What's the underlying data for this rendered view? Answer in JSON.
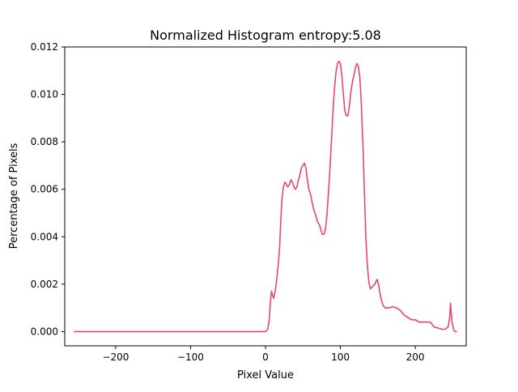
{
  "chart_data": {
    "type": "line",
    "title": "Normalized Histogram entropy:5.08",
    "xlabel": "Pixel Value",
    "ylabel": "Percentage of Pixels",
    "xlim": [
      -268,
      268
    ],
    "ylim": [
      -0.0006,
      0.012
    ],
    "xticks": [
      -200,
      -100,
      0,
      100,
      200
    ],
    "xtick_labels": [
      "−200",
      "−100",
      "0",
      "100",
      "200"
    ],
    "yticks": [
      0,
      0.002,
      0.004,
      0.006,
      0.008,
      0.01,
      0.012
    ],
    "ytick_labels": [
      "0.000",
      "0.002",
      "0.004",
      "0.006",
      "0.008",
      "0.010",
      "0.012"
    ],
    "grid": false,
    "legend": "none",
    "series": [
      {
        "color": "#e8466f",
        "points": [
          [
            -255,
            0.0
          ],
          [
            -200,
            0.0
          ],
          [
            -100,
            0.0
          ],
          [
            -20,
            0.0
          ],
          [
            0,
            0.0
          ],
          [
            3,
            0.0001
          ],
          [
            5,
            0.0005
          ],
          [
            7,
            0.0014
          ],
          [
            8,
            0.0017
          ],
          [
            10,
            0.0015
          ],
          [
            11,
            0.0014
          ],
          [
            13,
            0.0017
          ],
          [
            15,
            0.0022
          ],
          [
            17,
            0.0028
          ],
          [
            19,
            0.0036
          ],
          [
            20,
            0.0044
          ],
          [
            22,
            0.0056
          ],
          [
            24,
            0.0061
          ],
          [
            26,
            0.0063
          ],
          [
            28,
            0.0062
          ],
          [
            30,
            0.0061
          ],
          [
            32,
            0.0062
          ],
          [
            34,
            0.0064
          ],
          [
            36,
            0.0063
          ],
          [
            38,
            0.0061
          ],
          [
            40,
            0.006
          ],
          [
            42,
            0.0061
          ],
          [
            44,
            0.0064
          ],
          [
            46,
            0.0066
          ],
          [
            48,
            0.0069
          ],
          [
            50,
            0.007
          ],
          [
            52,
            0.0071
          ],
          [
            54,
            0.0069
          ],
          [
            56,
            0.0064
          ],
          [
            58,
            0.006
          ],
          [
            60,
            0.0058
          ],
          [
            62,
            0.0055
          ],
          [
            64,
            0.0052
          ],
          [
            66,
            0.005
          ],
          [
            68,
            0.0048
          ],
          [
            70,
            0.0046
          ],
          [
            72,
            0.0045
          ],
          [
            74,
            0.0043
          ],
          [
            76,
            0.0041
          ],
          [
            78,
            0.0041
          ],
          [
            80,
            0.0043
          ],
          [
            82,
            0.0049
          ],
          [
            84,
            0.0058
          ],
          [
            86,
            0.0068
          ],
          [
            88,
            0.008
          ],
          [
            90,
            0.0092
          ],
          [
            92,
            0.0102
          ],
          [
            94,
            0.0109
          ],
          [
            96,
            0.0113
          ],
          [
            98,
            0.0114
          ],
          [
            100,
            0.0113
          ],
          [
            102,
            0.0108
          ],
          [
            104,
            0.01
          ],
          [
            106,
            0.0093
          ],
          [
            108,
            0.0091
          ],
          [
            110,
            0.0091
          ],
          [
            112,
            0.0095
          ],
          [
            114,
            0.0101
          ],
          [
            116,
            0.0105
          ],
          [
            118,
            0.0108
          ],
          [
            120,
            0.0111
          ],
          [
            122,
            0.0113
          ],
          [
            124,
            0.0112
          ],
          [
            126,
            0.0107
          ],
          [
            128,
            0.0096
          ],
          [
            130,
            0.008
          ],
          [
            132,
            0.006
          ],
          [
            134,
            0.004
          ],
          [
            136,
            0.0028
          ],
          [
            138,
            0.0021
          ],
          [
            140,
            0.0018
          ],
          [
            143,
            0.0019
          ],
          [
            146,
            0.002
          ],
          [
            149,
            0.0022
          ],
          [
            151,
            0.002
          ],
          [
            153,
            0.0016
          ],
          [
            155,
            0.0013
          ],
          [
            157,
            0.0011
          ],
          [
            160,
            0.001
          ],
          [
            165,
            0.001
          ],
          [
            170,
            0.00105
          ],
          [
            175,
            0.001
          ],
          [
            180,
            0.0009
          ],
          [
            185,
            0.0007
          ],
          [
            190,
            0.0006
          ],
          [
            195,
            0.0005
          ],
          [
            200,
            0.0005
          ],
          [
            205,
            0.0004
          ],
          [
            210,
            0.0004
          ],
          [
            215,
            0.0004
          ],
          [
            220,
            0.0004
          ],
          [
            225,
            0.0002
          ],
          [
            230,
            0.00015
          ],
          [
            235,
            0.0001
          ],
          [
            240,
            0.0001
          ],
          [
            244,
            0.0002
          ],
          [
            246,
            0.0006
          ],
          [
            247,
            0.0012
          ],
          [
            248,
            0.0008
          ],
          [
            249,
            0.0004
          ],
          [
            250,
            0.0003
          ],
          [
            251,
            0.0001
          ],
          [
            253,
            0.0
          ],
          [
            255,
            0.0
          ]
        ]
      }
    ]
  }
}
